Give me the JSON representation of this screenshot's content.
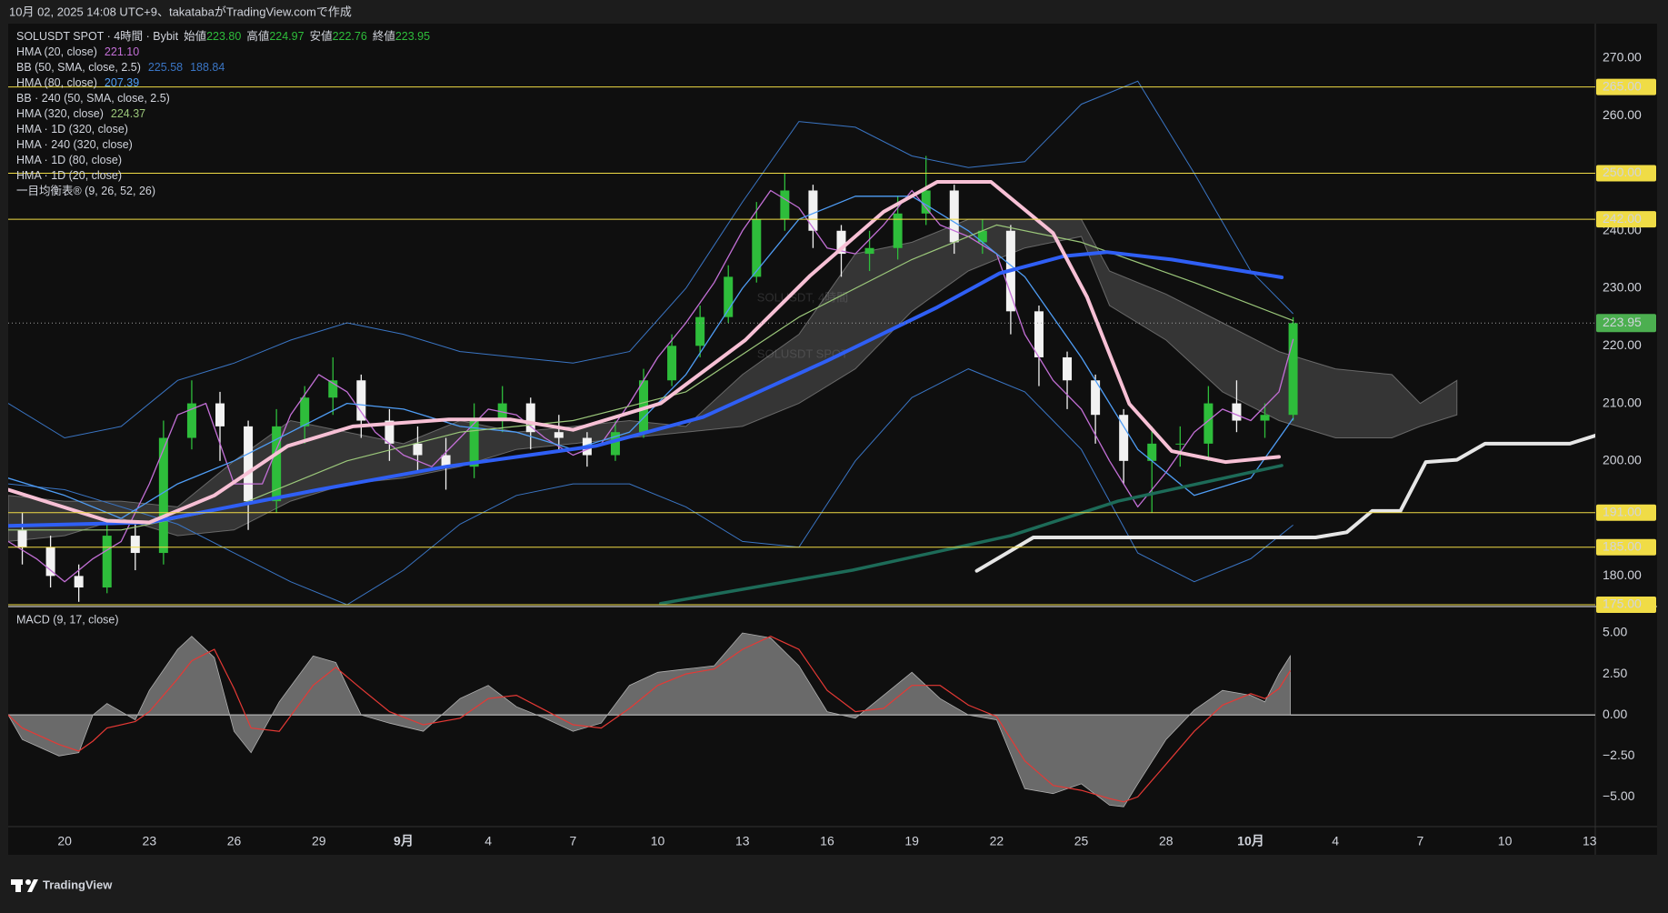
{
  "header": {
    "text": "10月 02, 2025 14:08 UTC+9、takatabaがTradingView.comで作成"
  },
  "footer": {
    "logo_text": "TradingView"
  },
  "chart_data": [
    {
      "type": "candlestick",
      "symbol": "SOLUSDT SPOT · 4時間 · Bybit",
      "ohlc_legend": [
        {
          "label": "始値",
          "value": "223.80"
        },
        {
          "label": "高値",
          "value": "224.97"
        },
        {
          "label": "安値",
          "value": "222.76"
        },
        {
          "label": "終値",
          "value": "223.95"
        }
      ],
      "watermark": [
        "SOLUSDT, 4時間",
        "SOLUSDT SPOT"
      ],
      "x": [
        -1.5,
        -0.5,
        0.5,
        1.5,
        2.5,
        3.5,
        4.5,
        5.5,
        6.5,
        7.5,
        8.5,
        9.5,
        10.5,
        11.5,
        12.5,
        13.5,
        14.5,
        15.5,
        16.5,
        17.5,
        18.5,
        19.5,
        20.5,
        21.5,
        22.5,
        23.5,
        24.5,
        25.5,
        26.5,
        27.5,
        28.5,
        29.5,
        30.5,
        31.5,
        32.5,
        33.5,
        34.5,
        35.5,
        36.5,
        37.5,
        38.5,
        39.5,
        40.5,
        41.5,
        42.5,
        43.5
      ],
      "open": [
        188,
        185,
        180,
        178,
        187,
        184,
        204,
        210,
        206,
        193,
        206,
        211,
        214,
        207,
        203,
        201,
        199,
        207,
        210,
        205,
        204,
        201,
        205,
        214,
        220,
        225,
        232,
        242,
        247,
        240,
        236,
        237,
        243,
        247,
        238,
        240,
        226,
        218,
        214,
        208,
        200,
        203,
        203,
        210,
        207,
        208
      ],
      "high": [
        191,
        187,
        182,
        190,
        189,
        207,
        214,
        212,
        207,
        209,
        213,
        218,
        215,
        209,
        206,
        204,
        210,
        213,
        211,
        208,
        205,
        207,
        216,
        222,
        227,
        234,
        245,
        250,
        248,
        241,
        240,
        246,
        253,
        248,
        242,
        241,
        227,
        219,
        215,
        209,
        206,
        206,
        213,
        214,
        210,
        224.97
      ],
      "low": [
        182,
        178,
        175.5,
        177,
        181,
        182,
        202,
        200,
        188,
        191,
        203,
        208,
        204,
        200,
        198,
        195,
        197,
        205,
        202,
        202,
        199,
        200,
        204,
        213,
        218,
        224,
        231,
        240,
        237,
        232,
        233,
        235,
        241,
        236,
        236,
        222,
        213,
        209,
        203,
        196,
        191,
        199,
        200,
        205,
        204,
        207
      ],
      "close": [
        185,
        180,
        178,
        187,
        184,
        204,
        210,
        206,
        193,
        206,
        211,
        214,
        207,
        203,
        201,
        199,
        207,
        210,
        205,
        204,
        201,
        205,
        214,
        220,
        225,
        232,
        242,
        247,
        240,
        236,
        237,
        243,
        247,
        238,
        240,
        226,
        218,
        214,
        208,
        200,
        203,
        203,
        210,
        207,
        208,
        223.95
      ],
      "up_color": "#2ebd3b",
      "down_color": "#f2f2f2",
      "series": [
        {
          "name": "HMA (20, close)",
          "kind": "line",
          "color": "#c36fd6",
          "width": 1.3,
          "legend_values": [
            "221.10"
          ],
          "x": [
            -2,
            -1,
            0,
            1,
            2,
            3,
            4,
            5,
            6,
            7,
            8,
            9,
            10,
            11,
            12,
            13,
            14,
            15,
            16,
            17,
            18,
            19,
            20,
            21,
            22,
            23,
            24,
            25,
            26,
            27,
            28,
            29,
            30,
            31,
            32,
            33,
            34,
            35,
            36,
            37,
            38,
            39,
            40,
            41,
            42,
            43,
            43.5
          ],
          "values": [
            186,
            183,
            179,
            183,
            186,
            196,
            208,
            210,
            196,
            196,
            208,
            215,
            212,
            205,
            201,
            199,
            204,
            209,
            208,
            204,
            201,
            203,
            210,
            218,
            224,
            231,
            240,
            247,
            244,
            237,
            236,
            241,
            247,
            241,
            239,
            236,
            222,
            214,
            209,
            200,
            192,
            198,
            205,
            209,
            207,
            212,
            221.1
          ]
        },
        {
          "name": "BB (50, SMA, close, 2.5)",
          "kind": "band",
          "color": "#3a75c4",
          "width": 1,
          "legend_values": [
            "225.58",
            "188.84"
          ],
          "x": [
            -2,
            0,
            2,
            4,
            6,
            8,
            10,
            12,
            14,
            16,
            18,
            20,
            22,
            24,
            26,
            28,
            30,
            32,
            34,
            36,
            38,
            40,
            42,
            43.5
          ],
          "upper": [
            210,
            204,
            206,
            214,
            217,
            221,
            224,
            222,
            219,
            218,
            217,
            219,
            230,
            245,
            259,
            258,
            253,
            251,
            252,
            262,
            266,
            250,
            233,
            225.58
          ],
          "lower": [
            196,
            195,
            192,
            189,
            184,
            179,
            175,
            181,
            189,
            194,
            196,
            196,
            192,
            186,
            185,
            200,
            211,
            216,
            212,
            202,
            184,
            179,
            183,
            188.84
          ]
        },
        {
          "name": "HMA (80, close)",
          "kind": "line",
          "color": "#4f9df5",
          "width": 1.3,
          "legend_values": [
            "207.39"
          ],
          "x": [
            -2,
            0,
            2,
            4,
            6,
            8,
            10,
            12,
            14,
            16,
            18,
            20,
            22,
            24,
            26,
            28,
            30,
            32,
            34,
            36,
            38,
            40,
            42,
            43.5
          ],
          "values": [
            197,
            194,
            190,
            196,
            200,
            205,
            210,
            209,
            206,
            205,
            202,
            205,
            215,
            230,
            242,
            246,
            246,
            240,
            232,
            218,
            202,
            194,
            197,
            207.39
          ]
        },
        {
          "name": "BB · 240 (50, SMA, close, 2.5)",
          "kind": "band",
          "color": "#3a75c4",
          "width": 1
        },
        {
          "name": "HMA (320, close)",
          "kind": "line",
          "color": "#9bc77a",
          "width": 1.2,
          "legend_values": [
            "224.37"
          ],
          "x": [
            -2,
            2,
            6,
            10,
            14,
            18,
            22,
            26,
            30,
            33,
            36,
            40,
            43.5
          ],
          "values": [
            188,
            188,
            192,
            200,
            205,
            207,
            212,
            225,
            235,
            241,
            238,
            231,
            224.37
          ]
        },
        {
          "name": "HMA · 1D (320, close)",
          "kind": "line",
          "color": "#1d6b58",
          "width": 3.5,
          "x": [
            21.1,
            27.9,
            33.5,
            37.3,
            43.1
          ],
          "values": [
            175.2,
            181,
            187,
            193,
            199.2
          ]
        },
        {
          "name": "HMA · 240 (320, close)",
          "kind": "line",
          "color": "#2f5ff5",
          "width": 4,
          "x": [
            -2,
            3,
            9,
            13.5,
            18.8,
            22.6,
            27,
            30.9,
            33.1,
            35.4,
            36.9,
            39.2,
            43.1
          ],
          "values": [
            188.7,
            189.3,
            195,
            199,
            202.6,
            207.6,
            217.4,
            226.7,
            232.6,
            235.6,
            236.3,
            235,
            231.9
          ]
        },
        {
          "name": "HMA · 1D (80, close)",
          "kind": "line",
          "color": "#f7c0d5",
          "width": 4,
          "x": [
            -2,
            1.5,
            3,
            5.3,
            7.9,
            10.2,
            13.6,
            15.8,
            18,
            21.1,
            24.1,
            26.4,
            29,
            30.9,
            32.8,
            35,
            36.2,
            37.7,
            39.2,
            41.1,
            43
          ],
          "values": [
            195,
            189.6,
            189.3,
            194,
            202.6,
            206,
            207.2,
            207.2,
            205.4,
            210,
            221,
            232.2,
            243.3,
            248.5,
            248.5,
            239.6,
            228.5,
            209.9,
            201.7,
            199.8,
            200.7
          ]
        },
        {
          "name": "HMA · 1D (20, close)",
          "kind": "line",
          "color": "#e6e6e6",
          "width": 4,
          "x": [
            32.3,
            34.3,
            44.3,
            45.4,
            46.3,
            47.3,
            48.2,
            49.3,
            50.3,
            53.3,
            54.2
          ],
          "values": [
            180.9,
            186.7,
            186.7,
            187.6,
            191.3,
            191.3,
            199.8,
            200.2,
            203,
            203,
            204.4
          ]
        },
        {
          "name": "一目均衡表® (9, 26, 52, 26)",
          "kind": "cloud",
          "color": "#bdbdbd",
          "x": [
            -2,
            0,
            2,
            4,
            6,
            8,
            10,
            12,
            14,
            16,
            18,
            20,
            22,
            24,
            26,
            28,
            30,
            32,
            34,
            36,
            37,
            39,
            41,
            43,
            45,
            47,
            48,
            49.3
          ],
          "upper": [
            194,
            193,
            193,
            192,
            200,
            207,
            205,
            203,
            207,
            205,
            206,
            207,
            206,
            215,
            222,
            236,
            238,
            242,
            242,
            242,
            233,
            229,
            224,
            219,
            216,
            215,
            210,
            214
          ],
          "lower": [
            186,
            187,
            190,
            187,
            188,
            193,
            196,
            197,
            199,
            202,
            203,
            204,
            205,
            206,
            210,
            216,
            226,
            233,
            237,
            239,
            227,
            221,
            212,
            207,
            204,
            204,
            206,
            208
          ]
        }
      ],
      "levels": [
        {
          "value": 265,
          "label": "265.00"
        },
        {
          "value": 250,
          "label": "250.00"
        },
        {
          "value": 242,
          "label": "242.00"
        },
        {
          "value": 191,
          "label": "191.00"
        },
        {
          "value": 185,
          "label": "185.00"
        },
        {
          "value": 175,
          "label": "175.00"
        }
      ],
      "level_color": "#f0dc46",
      "last_price": {
        "value": 223.95,
        "label": "223.95",
        "color": "#4caf50"
      },
      "xlim": [
        -2,
        54.2
      ],
      "ylim": [
        175,
        276
      ],
      "xticks": [
        {
          "value": 0,
          "label": "20"
        },
        {
          "value": 3,
          "label": "23"
        },
        {
          "value": 6,
          "label": "26"
        },
        {
          "value": 9,
          "label": "29"
        },
        {
          "value": 12,
          "label": "9月",
          "major": true
        },
        {
          "value": 15,
          "label": "4"
        },
        {
          "value": 18,
          "label": "7"
        },
        {
          "value": 21,
          "label": "10"
        },
        {
          "value": 24,
          "label": "13"
        },
        {
          "value": 27,
          "label": "16"
        },
        {
          "value": 30,
          "label": "19"
        },
        {
          "value": 33,
          "label": "22"
        },
        {
          "value": 36,
          "label": "25"
        },
        {
          "value": 39,
          "label": "28"
        },
        {
          "value": 42,
          "label": "10月",
          "major": true
        },
        {
          "value": 45,
          "label": "4"
        },
        {
          "value": 48,
          "label": "7"
        },
        {
          "value": 51,
          "label": "10"
        },
        {
          "value": 54,
          "label": "13"
        }
      ],
      "yticks": [
        {
          "value": 270,
          "label": "270.00"
        },
        {
          "value": 260,
          "label": "260.00"
        },
        {
          "value": 240,
          "label": "240.00"
        },
        {
          "value": 230,
          "label": "230.00"
        },
        {
          "value": 220,
          "label": "220.00"
        },
        {
          "value": 210,
          "label": "210.00"
        },
        {
          "value": 200,
          "label": "200.00"
        },
        {
          "value": 180,
          "label": "180.00"
        }
      ],
      "grid": false
    },
    {
      "type": "area",
      "title": "MACD (9, 17, close)",
      "x": [
        -2,
        -1.5,
        -0.2,
        0.5,
        1,
        1.5,
        2.5,
        3,
        4,
        4.5,
        5.3,
        6,
        6.6,
        7.6,
        8.8,
        9.6,
        10.5,
        11.5,
        12.7,
        14,
        15,
        16,
        17,
        18,
        19,
        20,
        21,
        22,
        23,
        24,
        25,
        26,
        27,
        28,
        29,
        30,
        31,
        32,
        33,
        34,
        35,
        36,
        37,
        37.5,
        38,
        39,
        40,
        41,
        42,
        42.5,
        43,
        43.4
      ],
      "values": [
        0,
        -1.5,
        -2.5,
        -2.3,
        0,
        0.7,
        -0.3,
        1.5,
        4,
        4.8,
        3.5,
        -1,
        -2.3,
        0.8,
        3.6,
        3.2,
        0,
        -0.5,
        -1,
        1,
        1.8,
        0.5,
        -0.2,
        -1,
        -0.5,
        1.8,
        2.6,
        2.8,
        3,
        5,
        4.7,
        3,
        0.2,
        -0.2,
        1.2,
        2.6,
        1,
        0,
        -0.3,
        -4.5,
        -4.8,
        -4.2,
        -5.5,
        -5.6,
        -4.2,
        -1.5,
        0.3,
        1.5,
        1.2,
        0.8,
        2.5,
        3.6
      ],
      "color": "#8a8a8a",
      "signal": [
        0,
        -0.8,
        -1.8,
        -2.2,
        -1.6,
        -0.8,
        -0.4,
        0.2,
        2.2,
        3.3,
        4,
        1.6,
        -0.8,
        -1,
        1.8,
        2.9,
        1.6,
        0.2,
        -0.6,
        -0.2,
        1,
        1.2,
        0.3,
        -0.6,
        -0.8,
        0.4,
        1.8,
        2.5,
        2.8,
        4,
        4.8,
        4,
        1.5,
        0.2,
        0.4,
        1.8,
        1.8,
        0.6,
        -0.1,
        -2.8,
        -4.3,
        -4.6,
        -5.1,
        -5.3,
        -5,
        -3,
        -1,
        0.6,
        1.3,
        1,
        1.6,
        2.7
      ],
      "signal_color": "#e53935",
      "xlim": [
        -2,
        54.2
      ],
      "ylim": [
        -6.7,
        6.5
      ],
      "yticks": [
        {
          "value": 5,
          "label": "5.00"
        },
        {
          "value": 2.5,
          "label": "2.50"
        },
        {
          "value": 0,
          "label": "0.00"
        },
        {
          "value": -2.5,
          "label": "−2.50"
        },
        {
          "value": -5,
          "label": "−5.00"
        }
      ],
      "zero_line": true,
      "grid": false
    }
  ]
}
